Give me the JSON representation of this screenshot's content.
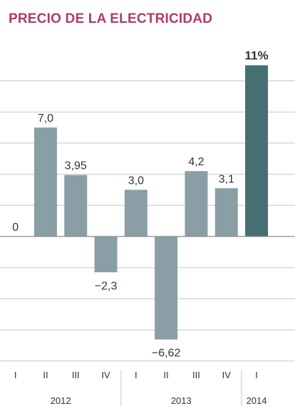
{
  "colors": {
    "title": "#b03a6b",
    "bar": "#8a9ea6",
    "bar_highlight": "#466f74",
    "grid": "#c8c8c8",
    "zero_line": "#8a8a8a",
    "text": "#333333"
  },
  "chart_data": {
    "type": "bar",
    "title": "PRECIO DE LA ELECTRICIDAD",
    "xlabel": "",
    "ylabel": "",
    "ylim": [
      -8,
      11
    ],
    "grid": true,
    "categories": [
      "I",
      "II",
      "III",
      "IV",
      "I",
      "II",
      "III",
      "IV",
      "I"
    ],
    "years": [
      {
        "label": "2012",
        "span": [
          1,
          4
        ]
      },
      {
        "label": "2013",
        "span": [
          5,
          8
        ]
      },
      {
        "label": "2014",
        "span": [
          9,
          9
        ]
      }
    ],
    "values": [
      0,
      7.0,
      3.95,
      -2.3,
      3.0,
      -6.62,
      4.2,
      3.1,
      11
    ],
    "value_labels": [
      "0",
      "7,0",
      "3,95",
      "−2,3",
      "3,0",
      "−6,62",
      "4,2",
      "3,1",
      "11%"
    ],
    "highlight_index": 8
  }
}
